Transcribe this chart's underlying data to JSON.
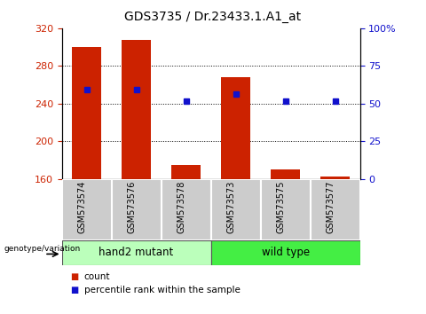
{
  "title": "GDS3735 / Dr.23433.1.A1_at",
  "categories": [
    "GSM573574",
    "GSM573576",
    "GSM573578",
    "GSM573573",
    "GSM573575",
    "GSM573577"
  ],
  "bar_heights": [
    300,
    308,
    175,
    268,
    170,
    163
  ],
  "bar_bottom": 160,
  "blue_y_left": [
    255,
    255,
    243,
    250,
    243,
    243
  ],
  "bar_color": "#cc2200",
  "blue_color": "#1111cc",
  "ylim_left": [
    160,
    320
  ],
  "ylim_right": [
    0,
    100
  ],
  "yticks_left": [
    160,
    200,
    240,
    280,
    320
  ],
  "yticks_right": [
    0,
    25,
    50,
    75,
    100
  ],
  "yticklabels_right": [
    "0",
    "25",
    "50",
    "75",
    "100%"
  ],
  "group1_label": "hand2 mutant",
  "group2_label": "wild type",
  "group1_color": "#bbffbb",
  "group2_color": "#44ee44",
  "genotype_label": "genotype/variation",
  "legend_count": "count",
  "legend_pct": "percentile rank within the sample",
  "grid_color": "#000000",
  "title_fontsize": 10,
  "tick_fontsize": 8,
  "bar_width": 0.6,
  "xtick_bg": "#cccccc"
}
